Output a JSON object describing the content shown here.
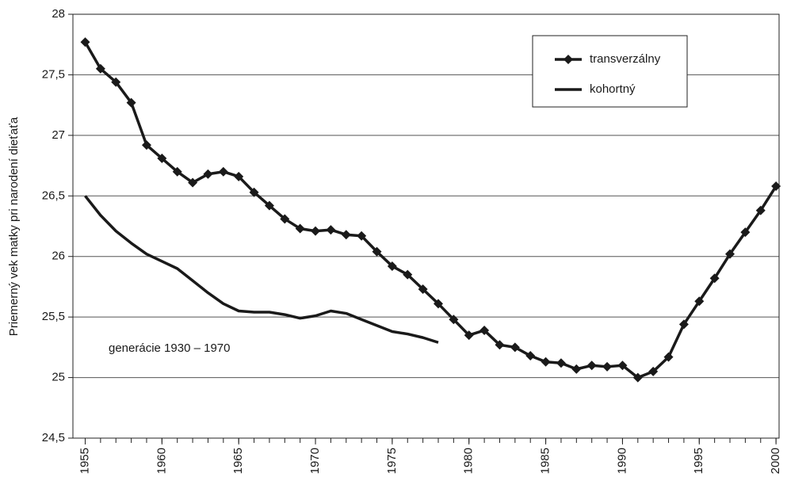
{
  "chart_data": {
    "type": "line",
    "y_label": "Priemerný vek matky pri narodení dieťaťa",
    "annotation": "generácie 1930 – 1970",
    "x": [
      1955,
      1956,
      1957,
      1958,
      1959,
      1960,
      1961,
      1962,
      1963,
      1964,
      1965,
      1966,
      1967,
      1968,
      1969,
      1970,
      1971,
      1972,
      1973,
      1974,
      1975,
      1976,
      1977,
      1978,
      1979,
      1980,
      1981,
      1982,
      1983,
      1984,
      1985,
      1986,
      1987,
      1988,
      1989,
      1990,
      1991,
      1992,
      1993,
      1994,
      1995,
      1996,
      1997,
      1998,
      1999,
      2000
    ],
    "series": [
      {
        "name": "transverzálny",
        "color": "#1a1a1a",
        "marker": "diamond",
        "values": [
          27.77,
          27.55,
          27.44,
          27.27,
          26.92,
          26.81,
          26.7,
          26.61,
          26.68,
          26.7,
          26.66,
          26.53,
          26.42,
          26.31,
          26.23,
          26.21,
          26.22,
          26.18,
          26.17,
          26.04,
          25.92,
          25.85,
          25.73,
          25.61,
          25.48,
          25.35,
          25.39,
          25.27,
          25.25,
          25.18,
          25.13,
          25.12,
          25.07,
          25.1,
          25.09,
          25.1,
          25.0,
          25.05,
          25.17,
          25.44,
          25.63,
          25.82,
          26.02,
          26.2,
          26.38,
          26.58
        ]
      },
      {
        "name": "kohortný",
        "color": "#1a1a1a",
        "marker": "none",
        "values": [
          26.5,
          26.34,
          26.21,
          26.11,
          26.02,
          25.96,
          25.9,
          25.8,
          25.7,
          25.61,
          25.55,
          25.54,
          25.54,
          25.52,
          25.49,
          25.51,
          25.55,
          25.53,
          25.48,
          25.43,
          25.38,
          25.36,
          25.33,
          25.29,
          null,
          null,
          null,
          null,
          null,
          null,
          null,
          null,
          null,
          null,
          null,
          null,
          null,
          null,
          null,
          null,
          null,
          null,
          null,
          null,
          null,
          null
        ]
      }
    ],
    "xlim": [
      1954.2,
      2000.2
    ],
    "xticks": [
      1955,
      1960,
      1965,
      1970,
      1975,
      1980,
      1985,
      1990,
      1995,
      2000
    ],
    "ylim": [
      24.5,
      28
    ],
    "yticks": [
      {
        "value": 24.5,
        "label": "24,5"
      },
      25,
      {
        "value": 25.5,
        "label": "25,5"
      },
      26,
      {
        "value": 26.5,
        "label": "26,5"
      },
      27,
      {
        "value": 27.5,
        "label": "27,5"
      },
      28
    ],
    "grid": true,
    "legend": "upper right"
  }
}
